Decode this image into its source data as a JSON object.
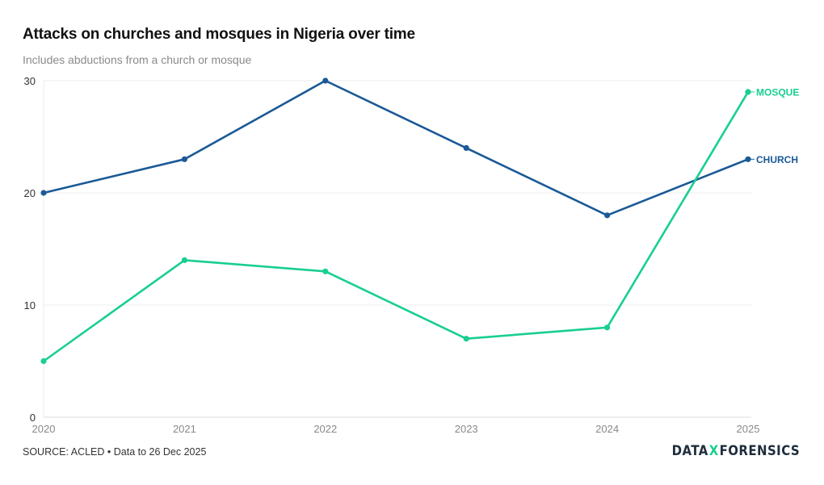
{
  "header": {
    "title": "Attacks on churches and mosques in Nigeria over time",
    "subtitle": "Includes abductions from a church or mosque"
  },
  "footer": {
    "source": "SOURCE: ACLED • Data to 26 Dec 2025",
    "logo_left": "DATA",
    "logo_x": "X",
    "logo_right": "FORENSICS"
  },
  "chart_data": {
    "type": "line",
    "title": "Attacks on churches and mosques in Nigeria over time",
    "subtitle": "Includes abductions from a church or mosque",
    "xlabel": "",
    "ylabel": "",
    "categories": [
      "2020",
      "2021",
      "2022",
      "2023",
      "2024",
      "2025"
    ],
    "ylim": [
      0,
      30
    ],
    "yticks": [
      0,
      10,
      20,
      30
    ],
    "grid": true,
    "legend": "end-of-line labels",
    "series": [
      {
        "name": "CHURCH",
        "color": "#1a5a96",
        "values": [
          20,
          23,
          30,
          24,
          18,
          23
        ]
      },
      {
        "name": "MOSQUE",
        "color": "#18cf90",
        "values": [
          5,
          14,
          13,
          7,
          8,
          29
        ]
      }
    ]
  }
}
